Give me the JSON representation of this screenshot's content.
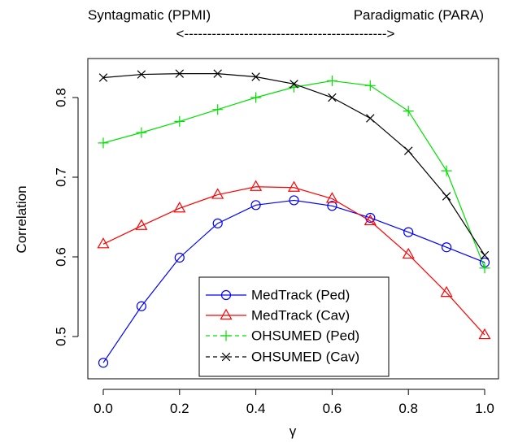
{
  "chart_data": {
    "type": "line",
    "title": "",
    "header_left": "Syntagmatic (PPMI)",
    "header_right": "Paradigmatic (PARA)",
    "header_arrow": "<-------------------------------------------->",
    "xlabel": "γ",
    "ylabel": "Correlation",
    "xlim": [
      0.0,
      1.0
    ],
    "ylim": [
      0.45,
      0.84
    ],
    "x_ticks": [
      0.0,
      0.2,
      0.4,
      0.6,
      0.8,
      1.0
    ],
    "x_tick_labels": [
      "0.0",
      "0.2",
      "0.4",
      "0.6",
      "0.8",
      "1.0"
    ],
    "y_ticks": [
      0.5,
      0.6,
      0.7,
      0.8
    ],
    "y_tick_labels": [
      "0.5",
      "0.6",
      "0.7",
      "0.8"
    ],
    "grid": false,
    "legend_position": "bottom-center",
    "x": [
      0.0,
      0.1,
      0.2,
      0.3,
      0.4,
      0.5,
      0.6,
      0.7,
      0.8,
      0.9,
      1.0
    ],
    "series": [
      {
        "name": "MedTrack (Ped)",
        "color": "#0000ff",
        "marker": "circle",
        "values": [
          0.467,
          0.538,
          0.599,
          0.642,
          0.665,
          0.671,
          0.664,
          0.649,
          0.631,
          0.612,
          0.593
        ]
      },
      {
        "name": "MedTrack (Cav)",
        "color": "#ff0000",
        "marker": "triangle",
        "values": [
          0.616,
          0.639,
          0.661,
          0.678,
          0.688,
          0.687,
          0.673,
          0.645,
          0.603,
          0.555,
          0.502
        ]
      },
      {
        "name": "OHSUMED (Ped)",
        "color": "#00e000",
        "marker": "plus",
        "values": [
          0.743,
          0.756,
          0.77,
          0.785,
          0.8,
          0.813,
          0.821,
          0.815,
          0.783,
          0.708,
          0.586
        ]
      },
      {
        "name": "OHSUMED (Cav)",
        "color": "#000000",
        "marker": "cross",
        "values": [
          0.825,
          0.829,
          0.83,
          0.83,
          0.826,
          0.817,
          0.8,
          0.774,
          0.733,
          0.676,
          0.602
        ]
      }
    ]
  }
}
